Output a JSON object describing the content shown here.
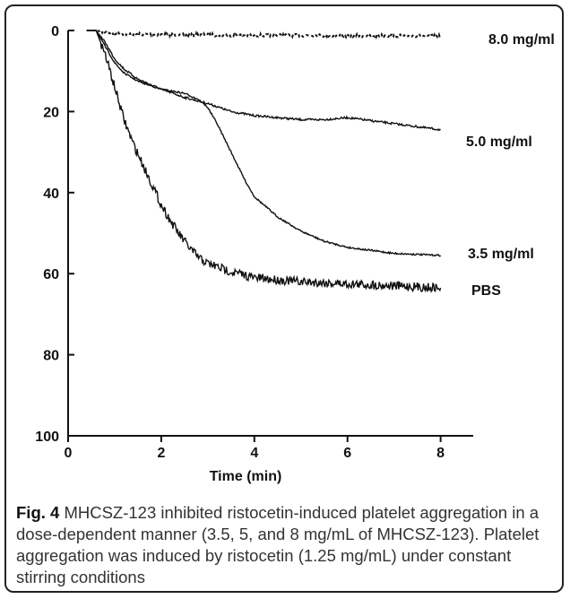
{
  "chart_data": {
    "type": "line",
    "title": "",
    "xlabel": "Time (min)",
    "ylabel": "",
    "xlim": [
      0,
      8.7
    ],
    "ylim": [
      0,
      100
    ],
    "y_inverted": true,
    "xticks": [
      "0",
      "2",
      "4",
      "6",
      "8"
    ],
    "yticks": [
      "0",
      "20",
      "40",
      "60",
      "80",
      "100"
    ],
    "grid": false,
    "legend": "inline-right",
    "series": [
      {
        "name": "8.0 mg/ml",
        "x": [
          0.4,
          0.6,
          1,
          2,
          3,
          4,
          5,
          6,
          7,
          8
        ],
        "y": [
          0,
          0,
          0.8,
          1,
          1.1,
          1.2,
          1.2,
          1.3,
          1.3,
          1.4
        ]
      },
      {
        "name": "5.0 mg/ml",
        "x": [
          0.4,
          0.6,
          0.8,
          1.0,
          1.2,
          1.5,
          2.0,
          2.5,
          3.0,
          3.5,
          4.0,
          5.0,
          5.5,
          6.0,
          7.0,
          8.0
        ],
        "y": [
          0,
          0,
          3,
          7,
          9.5,
          12,
          14.5,
          16.5,
          18,
          20,
          21,
          22,
          22,
          21.5,
          23,
          24.5
        ]
      },
      {
        "name": "3.5 mg/ml",
        "x": [
          0.4,
          0.6,
          0.8,
          1.0,
          1.2,
          1.5,
          2.0,
          2.5,
          2.8,
          3.0,
          3.2,
          3.5,
          3.8,
          4.0,
          4.5,
          5.0,
          5.5,
          6.0,
          7.0,
          8.0
        ],
        "y": [
          0,
          0,
          4,
          8,
          10.5,
          12.5,
          14.5,
          15.5,
          17,
          19,
          23,
          30,
          37,
          41,
          46,
          49.5,
          52,
          53.5,
          55,
          55.5
        ]
      },
      {
        "name": "PBS",
        "x": [
          0.4,
          0.6,
          0.8,
          1.0,
          1.2,
          1.4,
          1.6,
          1.8,
          2.0,
          2.2,
          2.4,
          2.6,
          2.8,
          3.0,
          3.5,
          4.0,
          5.0,
          6.0,
          7.0,
          8.0
        ],
        "y": [
          0,
          0,
          6,
          14,
          22,
          28,
          33,
          38,
          43,
          47,
          50.5,
          53.5,
          56,
          57.5,
          59.5,
          61,
          62,
          62.5,
          63,
          63.5
        ]
      }
    ]
  },
  "caption": {
    "label": "Fig. 4",
    "text": " MHCSZ-123 inhibited ristocetin-induced platelet aggregation in a dose-dependent manner (3.5, 5, and 8 mg/mL of MHCSZ-123). Platelet aggregation was induced by ristocetin (1.25 mg/mL) under constant stirring conditions"
  }
}
